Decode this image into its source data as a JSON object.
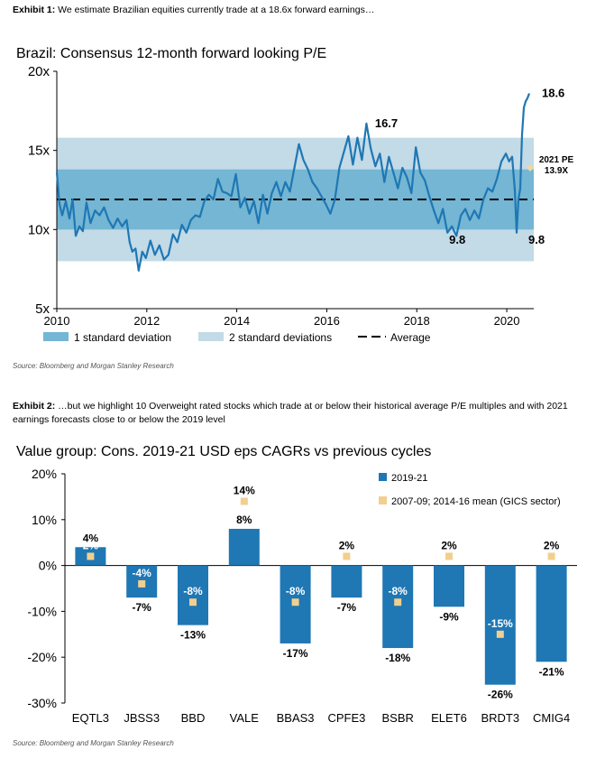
{
  "exhibit1": {
    "label": "Exhibit 1:",
    "text": " We estimate Brazilian equities currently trade at a 18.6x forward earnings…",
    "source": "Source: Bloomberg and Morgan Stanley Research"
  },
  "exhibit2": {
    "label": "Exhibit 2:",
    "text": " …but we highlight 10 Overweight rated stocks which trade at or below their historical average P/E multiples and with 2021 earnings forecasts close to or below the 2019 level",
    "source": "Source: Bloomberg and Morgan Stanley Research"
  },
  "colors": {
    "line": "#1f77b4",
    "band1": "#74b6d3",
    "band2": "#c3dae7",
    "bar": "#1f77b4",
    "marker": "#f2cf8e",
    "average": "#000000",
    "pe_marker": "#f0d9a0"
  },
  "chart_data": [
    {
      "type": "line",
      "title": "Brazil: Consensus 12-month forward looking P/E",
      "ylim": [
        5,
        20
      ],
      "xlim": [
        2010,
        2020.6
      ],
      "yticks": [
        5,
        10,
        15,
        20
      ],
      "ytick_labels": [
        "5x",
        "10x",
        "15x",
        "20x"
      ],
      "xticks": [
        2010,
        2012,
        2014,
        2016,
        2018,
        2020
      ],
      "xtick_labels": [
        "2010",
        "2012",
        "2014",
        "2016",
        "2018",
        "2020"
      ],
      "average": 11.9,
      "band_1sd": [
        10.0,
        13.8
      ],
      "band_2sd": [
        8.0,
        15.8
      ],
      "legend": [
        {
          "key": "band1",
          "label": "1 standard deviation"
        },
        {
          "key": "band2",
          "label": "2 standard deviations"
        },
        {
          "key": "avg",
          "label": "Average"
        }
      ],
      "legend_position": "bottom",
      "annotations": [
        {
          "x": 2016.95,
          "y": 16.7,
          "text": "16.7"
        },
        {
          "x": 2018.8,
          "y": 9.8,
          "text": "9.8"
        },
        {
          "x": 2020.4,
          "y": 9.8,
          "text": "9.8"
        },
        {
          "x": 2020.62,
          "y": 18.6,
          "text": "18.6"
        }
      ],
      "pe_2021": {
        "x": 2020.52,
        "y": 13.9,
        "label_line1": "2021 PE",
        "label_line2": "13.9X"
      },
      "series": [
        {
          "x": [
            2010.0,
            2010.06,
            2010.12,
            2010.2,
            2010.28,
            2010.35,
            2010.42,
            2010.5,
            2010.58,
            2010.66,
            2010.75,
            2010.85,
            2010.95,
            2011.05,
            2011.15,
            2011.25,
            2011.35,
            2011.45,
            2011.55,
            2011.62,
            2011.68,
            2011.75,
            2011.82,
            2011.9,
            2011.98,
            2012.08,
            2012.18,
            2012.28,
            2012.38,
            2012.48,
            2012.58,
            2012.68,
            2012.78,
            2012.88,
            2012.98,
            2013.08,
            2013.18,
            2013.28,
            2013.38,
            2013.48,
            2013.58,
            2013.68,
            2013.78,
            2013.88,
            2013.98,
            2014.08,
            2014.18,
            2014.28,
            2014.38,
            2014.48,
            2014.58,
            2014.68,
            2014.78,
            2014.88,
            2014.98,
            2015.08,
            2015.18,
            2015.28,
            2015.38,
            2015.48,
            2015.58,
            2015.68,
            2015.78,
            2015.88,
            2015.98,
            2016.08,
            2016.18,
            2016.28,
            2016.38,
            2016.48,
            2016.58,
            2016.68,
            2016.78,
            2016.88,
            2016.98,
            2017.08,
            2017.18,
            2017.28,
            2017.38,
            2017.48,
            2017.58,
            2017.68,
            2017.78,
            2017.88,
            2017.98,
            2018.08,
            2018.18,
            2018.28,
            2018.38,
            2018.48,
            2018.58,
            2018.68,
            2018.78,
            2018.88,
            2018.98,
            2019.08,
            2019.18,
            2019.28,
            2019.38,
            2019.48,
            2019.58,
            2019.68,
            2019.78,
            2019.88,
            2019.98,
            2020.05,
            2020.12,
            2020.18,
            2020.22,
            2020.26,
            2020.3,
            2020.34,
            2020.38,
            2020.42,
            2020.46,
            2020.5
          ],
          "values": [
            13.6,
            11.6,
            10.9,
            11.8,
            10.7,
            11.9,
            9.6,
            10.2,
            9.9,
            11.7,
            10.4,
            11.2,
            10.9,
            11.4,
            10.6,
            10.1,
            10.7,
            10.2,
            10.6,
            9.2,
            8.6,
            8.8,
            7.4,
            8.6,
            8.2,
            9.3,
            8.4,
            9.0,
            8.1,
            8.4,
            9.7,
            9.2,
            10.3,
            9.8,
            10.6,
            10.9,
            10.8,
            11.8,
            12.2,
            11.9,
            13.2,
            12.4,
            12.3,
            12.1,
            13.5,
            11.4,
            12.0,
            11.0,
            11.8,
            10.4,
            12.2,
            11.0,
            12.3,
            13.0,
            12.1,
            13.0,
            12.4,
            13.9,
            15.4,
            14.4,
            13.8,
            13.0,
            12.6,
            12.1,
            11.6,
            11.0,
            11.9,
            13.9,
            14.9,
            15.9,
            14.1,
            15.8,
            14.4,
            16.7,
            15.1,
            14.0,
            14.8,
            13.0,
            14.6,
            13.6,
            12.6,
            13.9,
            13.3,
            12.3,
            15.2,
            13.6,
            13.1,
            12.1,
            11.2,
            10.4,
            11.3,
            9.8,
            10.2,
            9.6,
            10.9,
            11.3,
            10.6,
            11.2,
            10.7,
            11.9,
            12.6,
            12.4,
            13.2,
            14.3,
            14.8,
            14.3,
            14.6,
            12.5,
            9.8,
            11.9,
            12.6,
            16.0,
            17.7,
            18.1,
            18.3,
            18.6
          ]
        }
      ]
    },
    {
      "type": "bar",
      "title": "Value group: Cons. 2019-21 USD eps CAGRs vs previous cycles",
      "ylim": [
        -30,
        20
      ],
      "yticks": [
        -30,
        -20,
        -10,
        0,
        10,
        20
      ],
      "ytick_labels": [
        "-30%",
        "-20%",
        "-10%",
        "0%",
        "10%",
        "20%"
      ],
      "categories": [
        "EQTL3",
        "JBSS3",
        "BBD",
        "VALE",
        "BBAS3",
        "CPFE3",
        "BSBR",
        "ELET6",
        "BRDT3",
        "CMIG4"
      ],
      "legend_position": "top-right",
      "series": [
        {
          "name": "2019-21",
          "values": [
            4,
            -7,
            -13,
            8,
            -17,
            -7,
            -18,
            -9,
            -26,
            -21
          ],
          "labels": [
            "4%",
            "-7%",
            "-13%",
            "8%",
            "-17%",
            "-7%",
            "-18%",
            "-9%",
            "-26%",
            "-21%"
          ]
        },
        {
          "name": "2007-09; 2014-16 mean (GICS sector)",
          "values": [
            2,
            -4,
            -8,
            14,
            -8,
            2,
            -8,
            2,
            -15,
            2
          ],
          "labels": [
            "2%",
            "-4%",
            "-8%",
            "14%",
            "-8%",
            "2%",
            "-8%",
            "2%",
            "-15%",
            "2%"
          ]
        }
      ]
    }
  ]
}
